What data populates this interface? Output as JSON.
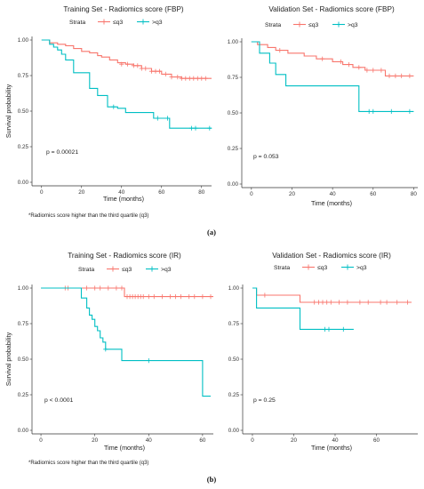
{
  "chart_data": [
    {
      "type": "line",
      "panel": "a",
      "title": "Training Set - Radiomics score (FBP)",
      "xlabel": "Time (months)",
      "ylabel": "Survival probability",
      "xlim": [
        -3,
        85
      ],
      "ylim": [
        0,
        1
      ],
      "x_ticks": [
        "0",
        "20",
        "40",
        "60",
        "80"
      ],
      "y_ticks": [
        "0.00",
        "0.25",
        "0.50",
        "0.75",
        "1.00"
      ],
      "legend_title": "Strata",
      "pvalue": "p = 0.00021",
      "grid": false,
      "legend_position": "top",
      "series": [
        {
          "name": "≤q3",
          "color": "#F8766D",
          "x": [
            0,
            4,
            8,
            12,
            16,
            20,
            24,
            28,
            30,
            34,
            38,
            42,
            46,
            50,
            55,
            60,
            65,
            70,
            85
          ],
          "y": [
            1.0,
            0.98,
            0.97,
            0.96,
            0.94,
            0.92,
            0.91,
            0.89,
            0.88,
            0.86,
            0.84,
            0.83,
            0.82,
            0.8,
            0.78,
            0.76,
            0.74,
            0.73,
            0.73
          ],
          "censor_x": [
            40,
            43,
            46,
            48,
            50,
            52,
            55,
            57,
            59,
            62,
            65,
            68,
            70,
            72,
            74,
            76,
            78,
            80,
            82
          ],
          "censor_y": [
            0.83,
            0.83,
            0.82,
            0.82,
            0.8,
            0.8,
            0.78,
            0.78,
            0.78,
            0.76,
            0.74,
            0.74,
            0.73,
            0.73,
            0.73,
            0.73,
            0.73,
            0.73,
            0.73
          ]
        },
        {
          "name": ">q3",
          "color": "#00BFC4",
          "x": [
            0,
            4,
            6,
            8,
            10,
            12,
            16,
            20,
            24,
            28,
            33,
            38,
            42,
            46,
            52,
            56,
            60,
            64,
            85
          ],
          "y": [
            1.0,
            0.97,
            0.95,
            0.93,
            0.9,
            0.86,
            0.77,
            0.77,
            0.66,
            0.61,
            0.53,
            0.52,
            0.49,
            0.49,
            0.49,
            0.45,
            0.45,
            0.38,
            0.38
          ],
          "censor_x": [
            36,
            58,
            63,
            75,
            77,
            84
          ],
          "censor_y": [
            0.53,
            0.45,
            0.45,
            0.38,
            0.38,
            0.38
          ]
        }
      ]
    },
    {
      "type": "line",
      "panel": "a",
      "title": "Validation Set - Radiomics score (FBP)",
      "xlabel": "Time (months)",
      "ylabel": "",
      "xlim": [
        -3,
        82
      ],
      "ylim": [
        0,
        1
      ],
      "x_ticks": [
        "0",
        "20",
        "40",
        "60",
        "80"
      ],
      "y_ticks": [
        "0.00",
        "0.25",
        "0.50",
        "0.75",
        "1.00"
      ],
      "legend_title": "Strata",
      "pvalue": "p = 0.053",
      "grid": false,
      "legend_position": "top",
      "series": [
        {
          "name": "≤q3",
          "color": "#F8766D",
          "x": [
            0,
            3,
            8,
            12,
            18,
            26,
            32,
            40,
            45,
            50,
            56,
            62,
            66,
            80
          ],
          "y": [
            1.0,
            0.98,
            0.96,
            0.94,
            0.92,
            0.9,
            0.88,
            0.86,
            0.84,
            0.82,
            0.8,
            0.8,
            0.76,
            0.76
          ],
          "censor_x": [
            14,
            35,
            44,
            48,
            53,
            57,
            60,
            64,
            68,
            71,
            74,
            78
          ],
          "censor_y": [
            0.94,
            0.88,
            0.86,
            0.84,
            0.82,
            0.8,
            0.8,
            0.8,
            0.76,
            0.76,
            0.76,
            0.76
          ],
          "start": 0
        },
        {
          "name": ">q3",
          "color": "#00BFC4",
          "x": [
            0,
            4,
            9,
            12,
            17,
            53,
            80
          ],
          "y": [
            1.0,
            0.92,
            0.85,
            0.77,
            0.69,
            0.51,
            0.51
          ],
          "censor_x": [
            58,
            60,
            69,
            78
          ],
          "censor_y": [
            0.51,
            0.51,
            0.51,
            0.51
          ]
        }
      ]
    },
    {
      "type": "line",
      "panel": "b",
      "title": "Training Set - Radiomics score (IR)",
      "xlabel": "Time (months)",
      "ylabel": "Survival probability",
      "xlim": [
        -2,
        64
      ],
      "ylim": [
        0,
        1
      ],
      "x_ticks": [
        "0",
        "20",
        "40",
        "60"
      ],
      "y_ticks": [
        "0.00",
        "0.25",
        "0.50",
        "0.75",
        "1.00"
      ],
      "legend_title": "Strata",
      "pvalue": "p < 0.0001",
      "grid": false,
      "legend_position": "top",
      "series": [
        {
          "name": "≤q3",
          "color": "#F8766D",
          "x": [
            0,
            30,
            31,
            64
          ],
          "y": [
            1.0,
            1.0,
            0.94,
            0.94
          ],
          "censor_x": [
            9,
            10,
            17,
            20,
            22,
            25,
            28,
            30,
            32,
            33,
            34,
            35,
            36,
            37,
            38,
            40,
            42,
            45,
            48,
            50,
            52,
            55,
            57,
            60,
            63
          ],
          "censor_y": [
            1,
            1,
            1,
            1,
            1,
            1,
            1,
            1,
            0.94,
            0.94,
            0.94,
            0.94,
            0.94,
            0.94,
            0.94,
            0.94,
            0.94,
            0.94,
            0.94,
            0.94,
            0.94,
            0.94,
            0.94,
            0.94,
            0.94
          ]
        },
        {
          "name": ">q3",
          "color": "#00BFC4",
          "x": [
            0,
            15,
            17,
            18,
            19,
            20,
            21,
            22,
            23,
            24,
            28,
            30,
            58,
            60,
            63
          ],
          "y": [
            1.0,
            0.93,
            0.86,
            0.81,
            0.78,
            0.73,
            0.7,
            0.65,
            0.62,
            0.57,
            0.57,
            0.49,
            0.49,
            0.24,
            0.24
          ],
          "censor_x": [
            24,
            40
          ],
          "censor_y": [
            0.57,
            0.49
          ]
        }
      ]
    },
    {
      "type": "line",
      "panel": "b",
      "title": "Validation Set - Radiomics score (IR)",
      "xlabel": "Time (months)",
      "ylabel": "",
      "xlim": [
        -3,
        80
      ],
      "ylim": [
        0,
        1
      ],
      "x_ticks": [
        "0",
        "20",
        "40",
        "60"
      ],
      "y_ticks": [
        "0.00",
        "0.25",
        "0.50",
        "0.75",
        "1.00"
      ],
      "legend_title": "Strata",
      "pvalue": "p = 0.25",
      "grid": false,
      "legend_position": "top",
      "series": [
        {
          "name": "≤q3",
          "color": "#F8766D",
          "x": [
            0,
            2,
            23,
            77
          ],
          "y": [
            1.0,
            0.95,
            0.9,
            0.9
          ],
          "censor_x": [
            6,
            30,
            32,
            34,
            36,
            38,
            42,
            46,
            52,
            56,
            62,
            65,
            70,
            75
          ],
          "censor_y": [
            0.95,
            0.9,
            0.9,
            0.9,
            0.9,
            0.9,
            0.9,
            0.9,
            0.9,
            0.9,
            0.9,
            0.9,
            0.9,
            0.9
          ]
        },
        {
          "name": ">q3",
          "color": "#00BFC4",
          "x": [
            0,
            2,
            23,
            49
          ],
          "y": [
            1.0,
            0.86,
            0.71,
            0.71
          ],
          "censor_x": [
            35,
            37,
            44
          ],
          "censor_y": [
            0.71,
            0.71,
            0.71
          ]
        }
      ]
    }
  ],
  "footnotes": [
    "*Radiomics score higher than the third quartile (q3)",
    "*Radiomics score higher than the third quartile (q3)"
  ],
  "captions": [
    "(a)",
    "(b)"
  ]
}
